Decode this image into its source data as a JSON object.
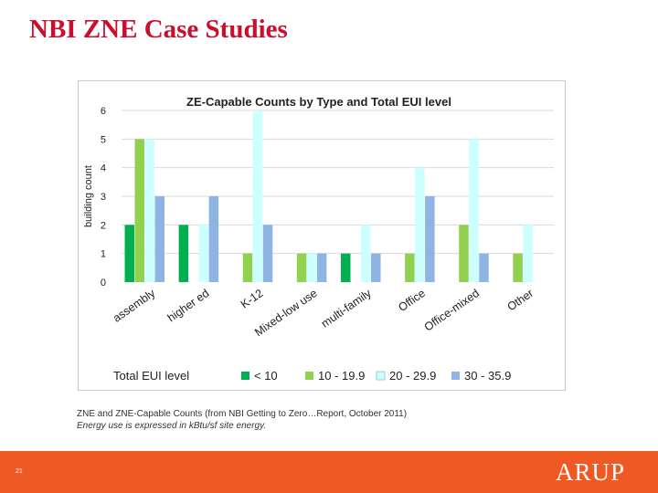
{
  "slide": {
    "title": "NBI ZNE Case Studies",
    "page_number": "21",
    "logo_text": "ARUP",
    "caption": "ZNE and ZNE-Capable Counts (from NBI Getting to Zero…Report, October 2011)",
    "caption_note": "Energy use is expressed in kBtu/sf site energy."
  },
  "colors": {
    "title": "#c8102e",
    "footer": "#ef5a24",
    "series": [
      "#00b050",
      "#92d050",
      "#ccffff",
      "#8eb4e3"
    ]
  },
  "chart_data": {
    "type": "bar",
    "title": "ZE-Capable Counts by Type and Total EUI level",
    "ylabel": "building count",
    "xlabel": "",
    "ylim": [
      0,
      6
    ],
    "yticks": [
      "0",
      "1",
      "2",
      "3",
      "4",
      "5",
      "6"
    ],
    "grid": true,
    "legend_title": "Total EUI level",
    "legend_position": "bottom",
    "categories": [
      "assembly",
      "higher ed",
      "K-12",
      "Mixed-low use",
      "multi-family",
      "Office",
      "Office-mixed",
      "Other"
    ],
    "series": [
      {
        "name": "< 10",
        "values": [
          2,
          2,
          0,
          0,
          1,
          0,
          0,
          0
        ]
      },
      {
        "name": "10 - 19.9",
        "values": [
          5,
          0,
          1,
          1,
          0,
          1,
          2,
          1
        ]
      },
      {
        "name": "20 - 29.9",
        "values": [
          5,
          2,
          6,
          1,
          2,
          4,
          5,
          2
        ]
      },
      {
        "name": "30 - 35.9",
        "values": [
          3,
          3,
          2,
          1,
          1,
          3,
          1,
          0
        ]
      }
    ]
  }
}
